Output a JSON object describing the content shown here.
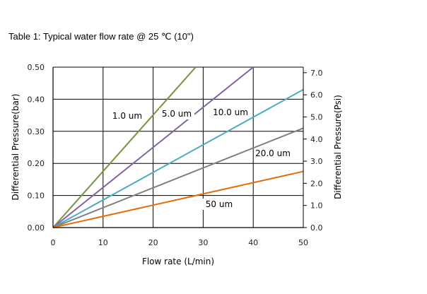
{
  "title": "Table 1:  Typical water flow rate @ 25 ℃ (10\")",
  "chart_data": {
    "type": "line",
    "title": "",
    "xlabel": "Flow rate (L/min)",
    "ylabel": "Differential Pressure(bar)",
    "y2label": "Differential Pressure(Psi)",
    "xlim": [
      0,
      50
    ],
    "ylim": [
      0,
      0.5
    ],
    "y2lim": [
      0,
      7.25
    ],
    "grid": true,
    "x_ticks": [
      "0",
      "10",
      "20",
      "30",
      "40",
      "50"
    ],
    "y_ticks": [
      "0.00",
      "0.10",
      "0.20",
      "0.30",
      "0.40",
      "0.50"
    ],
    "y2_ticks": [
      "0.0",
      "1.0",
      "2.0",
      "3.0",
      "4.0",
      "5.0",
      "6.0",
      "7.0"
    ],
    "series": [
      {
        "name": "1.0 um",
        "color": "#77933c",
        "x": [
          0,
          28.5
        ],
        "y": [
          0,
          0.5
        ]
      },
      {
        "name": "5.0 um",
        "color": "#8064a2",
        "x": [
          0,
          40
        ],
        "y": [
          0,
          0.5
        ]
      },
      {
        "name": "10.0 um",
        "color": "#4bacc6",
        "x": [
          0,
          50
        ],
        "y": [
          0,
          0.43
        ]
      },
      {
        "name": "20.0 um",
        "color": "#7f7f7f",
        "x": [
          0,
          50
        ],
        "y": [
          0,
          0.31
        ]
      },
      {
        "name": "50 um",
        "color": "#e46c0a",
        "x": [
          0,
          50
        ],
        "y": [
          0,
          0.175
        ]
      }
    ]
  }
}
